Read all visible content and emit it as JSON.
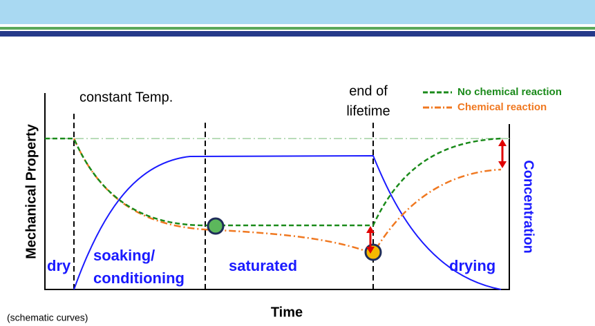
{
  "labels": {
    "constant_temp": "constant Temp.",
    "end_of_lifetime": [
      "end of",
      "lifetime"
    ],
    "y_axis": "Mechanical Property",
    "y2_axis": "Concentration",
    "x_axis": "Time",
    "note": "(schematic curves)"
  },
  "legend": [
    "No chemical reaction",
    "Chemical reaction"
  ],
  "phases": {
    "dry": "dry",
    "soaking": [
      "soaking/",
      "conditioning"
    ],
    "saturated": "saturated",
    "drying": "drying"
  }
}
